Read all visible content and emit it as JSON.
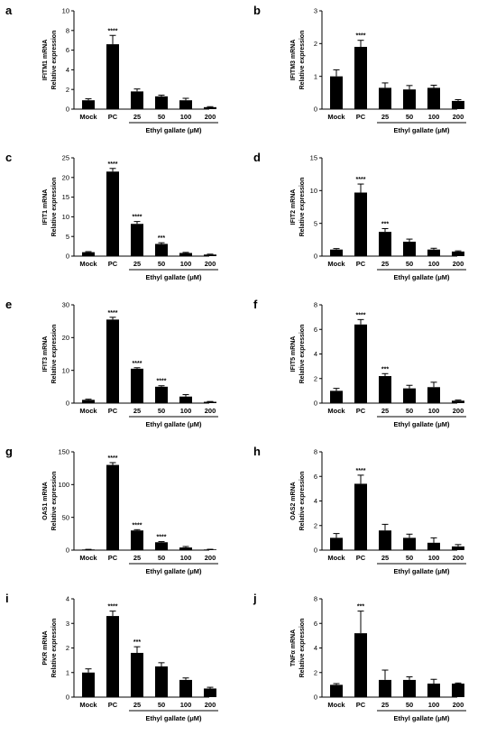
{
  "chart_data": [
    {
      "panel": "a",
      "type": "bar",
      "ylabel": [
        "IFITM1 mRNA",
        "Relative expression"
      ],
      "categories": [
        "Mock",
        "PC",
        "25",
        "50",
        "100",
        "200"
      ],
      "values": [
        0.9,
        6.6,
        1.8,
        1.3,
        0.9,
        0.2
      ],
      "errors": [
        0.15,
        0.9,
        0.25,
        0.12,
        0.2,
        0.05
      ],
      "significance": [
        "",
        "****",
        "",
        "",
        "",
        ""
      ],
      "ylim": [
        0,
        10
      ],
      "yticks": [
        0,
        2,
        4,
        6,
        8,
        10
      ],
      "group_label": "Ethyl gallate (μM)"
    },
    {
      "panel": "b",
      "type": "bar",
      "ylabel": [
        "IFITM3 mRNA",
        "Relative expression"
      ],
      "categories": [
        "Mock",
        "PC",
        "25",
        "50",
        "100",
        "200"
      ],
      "values": [
        1.0,
        1.9,
        0.65,
        0.6,
        0.65,
        0.25
      ],
      "errors": [
        0.2,
        0.2,
        0.15,
        0.12,
        0.08,
        0.04
      ],
      "significance": [
        "",
        "****",
        "",
        "",
        "",
        ""
      ],
      "ylim": [
        0,
        3
      ],
      "yticks": [
        0,
        1,
        2,
        3
      ],
      "group_label": "Ethyl gallate (μM)"
    },
    {
      "panel": "c",
      "type": "bar",
      "ylabel": [
        "IFIT1 mRNA",
        "Relative expression"
      ],
      "categories": [
        "Mock",
        "PC",
        "25",
        "50",
        "100",
        "200"
      ],
      "values": [
        1.0,
        21.5,
        8.2,
        3.1,
        0.8,
        0.4
      ],
      "errors": [
        0.15,
        0.8,
        0.6,
        0.3,
        0.15,
        0.1
      ],
      "significance": [
        "",
        "****",
        "****",
        "***",
        "",
        ""
      ],
      "ylim": [
        0,
        25
      ],
      "yticks": [
        0,
        5,
        10,
        15,
        20,
        25
      ],
      "group_label": "Ethyl gallate (μM)"
    },
    {
      "panel": "d",
      "type": "bar",
      "ylabel": [
        "IFIT2 mRNA",
        "Relative expression"
      ],
      "categories": [
        "Mock",
        "PC",
        "25",
        "50",
        "100",
        "200"
      ],
      "values": [
        1.0,
        9.7,
        3.7,
        2.2,
        1.0,
        0.7
      ],
      "errors": [
        0.15,
        1.3,
        0.5,
        0.4,
        0.2,
        0.1
      ],
      "significance": [
        "",
        "****",
        "***",
        "",
        "",
        ""
      ],
      "ylim": [
        0,
        15
      ],
      "yticks": [
        0,
        5,
        10,
        15
      ],
      "group_label": "Ethyl gallate (μM)"
    },
    {
      "panel": "e",
      "type": "bar",
      "ylabel": [
        "IFIT3 mRNA",
        "Relative expression"
      ],
      "categories": [
        "Mock",
        "PC",
        "25",
        "50",
        "100",
        "200"
      ],
      "values": [
        1.0,
        25.5,
        10.5,
        5.0,
        2.0,
        0.4
      ],
      "errors": [
        0.2,
        0.7,
        0.3,
        0.3,
        0.6,
        0.1
      ],
      "significance": [
        "",
        "****",
        "****",
        "****",
        "",
        ""
      ],
      "ylim": [
        0,
        30
      ],
      "yticks": [
        0,
        10,
        20,
        30
      ],
      "group_label": "Ethyl gallate (μM)"
    },
    {
      "panel": "f",
      "type": "bar",
      "ylabel": [
        "IFIT5 mRNA",
        "Relative expression"
      ],
      "categories": [
        "Mock",
        "PC",
        "25",
        "50",
        "100",
        "200"
      ],
      "values": [
        1.0,
        6.4,
        2.2,
        1.2,
        1.3,
        0.2
      ],
      "errors": [
        0.2,
        0.4,
        0.2,
        0.25,
        0.4,
        0.05
      ],
      "significance": [
        "",
        "****",
        "***",
        "",
        "",
        ""
      ],
      "ylim": [
        0,
        8
      ],
      "yticks": [
        0,
        2,
        4,
        6,
        8
      ],
      "group_label": "Ethyl gallate (μM)"
    },
    {
      "panel": "g",
      "type": "bar",
      "ylabel": [
        "OAS1 mRNA",
        "Relative expression"
      ],
      "categories": [
        "Mock",
        "PC",
        "25",
        "50",
        "100",
        "200"
      ],
      "values": [
        1.0,
        130,
        30,
        12,
        4,
        1
      ],
      "errors": [
        0.2,
        3.5,
        1.2,
        1.0,
        1.5,
        0.3
      ],
      "significance": [
        "",
        "****",
        "****",
        "****",
        "",
        ""
      ],
      "ylim": [
        0,
        150
      ],
      "yticks": [
        0,
        50,
        100,
        150
      ],
      "group_label": "Ethyl gallate (μM)"
    },
    {
      "panel": "h",
      "type": "bar",
      "ylabel": [
        "OAS2 mRNA",
        "Relative expression"
      ],
      "categories": [
        "Mock",
        "PC",
        "25",
        "50",
        "100",
        "200"
      ],
      "values": [
        1.0,
        5.4,
        1.6,
        1.0,
        0.6,
        0.3
      ],
      "errors": [
        0.35,
        0.7,
        0.5,
        0.3,
        0.4,
        0.15
      ],
      "significance": [
        "",
        "****",
        "",
        "",
        "",
        ""
      ],
      "ylim": [
        0,
        8
      ],
      "yticks": [
        0,
        2,
        4,
        6,
        8
      ],
      "group_label": "Ethyl gallate (μM)"
    },
    {
      "panel": "i",
      "type": "bar",
      "ylabel": [
        "PKR mRNA",
        "Relative expression"
      ],
      "categories": [
        "Mock",
        "PC",
        "25",
        "50",
        "100",
        "200"
      ],
      "values": [
        1.0,
        3.3,
        1.8,
        1.25,
        0.7,
        0.35
      ],
      "errors": [
        0.15,
        0.2,
        0.25,
        0.15,
        0.08,
        0.05
      ],
      "significance": [
        "",
        "****",
        "***",
        "",
        "",
        ""
      ],
      "ylim": [
        0,
        4
      ],
      "yticks": [
        0,
        1,
        2,
        3,
        4
      ],
      "group_label": "Ethyl gallate (μM)"
    },
    {
      "panel": "j",
      "type": "bar",
      "ylabel": [
        "TNFα mRNA",
        "Relative expression"
      ],
      "categories": [
        "Mock",
        "PC",
        "25",
        "50",
        "100",
        "200"
      ],
      "values": [
        1.0,
        5.2,
        1.4,
        1.4,
        1.1,
        1.1
      ],
      "errors": [
        0.1,
        1.8,
        0.8,
        0.25,
        0.35,
        0.05
      ],
      "significance": [
        "",
        "***",
        "",
        "",
        "",
        ""
      ],
      "ylim": [
        0,
        8
      ],
      "yticks": [
        0,
        2,
        4,
        6,
        8
      ],
      "group_label": "Ethyl gallate (μM)"
    }
  ]
}
